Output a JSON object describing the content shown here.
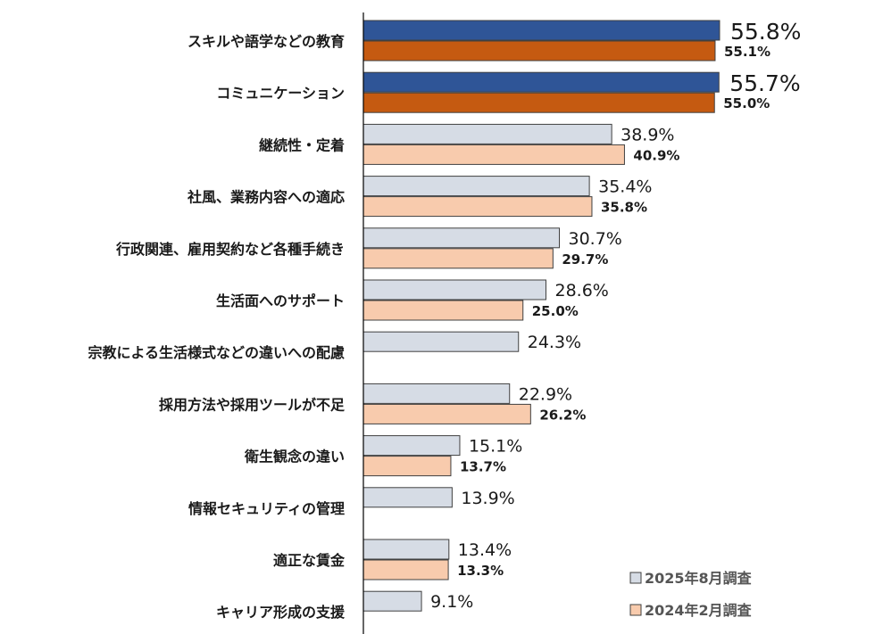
{
  "chart_data": {
    "type": "bar",
    "orientation": "horizontal",
    "categories": [
      "スキルや語学などの教育",
      "コミュニケーション",
      "継続性・定着",
      "社風、業務内容への適応",
      "行政関連、雇用契約など各種手続き",
      "生活面へのサポート",
      "宗教による生活様式などの違いへの配慮",
      "採用方法や採用ツールが不足",
      "衛生観念の違い",
      "情報セキュリティの管理",
      "適正な賃金",
      "キャリア形成の支援"
    ],
    "series": [
      {
        "name": "2025年8月調査",
        "values": [
          55.8,
          55.7,
          38.9,
          35.4,
          30.7,
          28.6,
          24.3,
          22.9,
          15.1,
          13.9,
          13.4,
          9.1
        ],
        "labels": [
          "55.8%",
          "55.7%",
          "38.9%",
          "35.4%",
          "30.7%",
          "28.6%",
          "24.3%",
          "22.9%",
          "15.1%",
          "13.9%",
          "13.4%",
          "9.1%"
        ]
      },
      {
        "name": "2024年2月調査",
        "values": [
          55.1,
          55.0,
          40.9,
          35.8,
          29.7,
          25.0,
          null,
          26.2,
          13.7,
          null,
          13.3,
          null
        ],
        "labels": [
          "55.1%",
          "55.0%",
          "40.9%",
          "35.8%",
          "29.7%",
          "25.0%",
          null,
          "26.2%",
          "13.7%",
          null,
          "13.3%",
          null
        ]
      }
    ],
    "highlighted_categories": 2,
    "colors": {
      "series_a_top": "#2f5597",
      "series_a": "#d6dce5",
      "series_b_top": "#c55a11",
      "series_b": "#f8cbad",
      "border": "#404040"
    },
    "xlim": [
      0,
      60
    ],
    "grid": false,
    "legend_position": "bottom-right"
  }
}
